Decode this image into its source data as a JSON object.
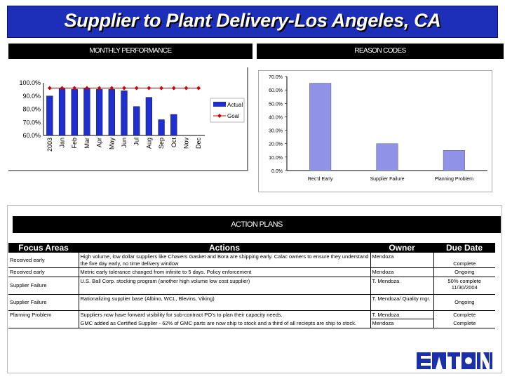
{
  "title": "Supplier to Plant Delivery-Los Angeles, CA",
  "monthly_header": "MONTHLY PERFORMANCE",
  "reason_header": "REASON CODES",
  "action_header": "ACTION PLANS",
  "logo_text": "EATON",
  "colors": {
    "title_bg": "#1d2fb8",
    "bar": "#1f2fd0",
    "goal": "#cc0000",
    "reason_bar": "#8f92e6"
  },
  "chart_data": [
    {
      "type": "bar",
      "categories": [
        "2003",
        "Jan",
        "Feb",
        "Mar",
        "Apr",
        "May",
        "Jun",
        "Jul",
        "Aug",
        "Sep",
        "Oct",
        "Nov",
        "Dec"
      ],
      "series": [
        {
          "name": "Actual",
          "values": [
            90,
            95.5,
            95,
            96,
            95,
            95,
            94,
            82,
            89,
            72,
            76,
            null,
            null
          ]
        },
        {
          "name": "Goal",
          "type": "line",
          "values": [
            96,
            96,
            96,
            96,
            96,
            96,
            96,
            96,
            96,
            96,
            96,
            96,
            96
          ]
        }
      ],
      "yticks": [
        "100.0%",
        "90.0%",
        "80.0%",
        "70.0%",
        "60.0%"
      ],
      "ylim": [
        60,
        100
      ],
      "legend": [
        "Actual",
        "Goal"
      ],
      "legend_position": "right"
    },
    {
      "type": "bar",
      "categories": [
        "Rec'd Early",
        "Supplier Failure",
        "Planning Problem"
      ],
      "values": [
        65,
        20,
        15
      ],
      "yticks": [
        "70.0%",
        "60.0%",
        "50.0%",
        "40.0%",
        "30.0%",
        "20.0%",
        "10.0%",
        "0.0%"
      ],
      "ylim": [
        0,
        70
      ]
    }
  ],
  "table": {
    "headers": [
      "Focus Areas",
      "Actions",
      "Owner",
      "Due Date"
    ],
    "rows": [
      {
        "focus": "Received early",
        "action": "High volume, low dollar suppliers like Chavers Gasket and Bora are shipping early. Calac owners to ensure they understand the five day early, no time delivery window",
        "owner": "Mendoza",
        "due": "Complete"
      },
      {
        "focus": "Received early",
        "action": "Metric early tolerance changed from infinite to 5 days. Policy enforcement",
        "owner": "Mendoza",
        "due": "Ongoing"
      },
      {
        "focus": "Supplier Failure",
        "action": "U.S. Ball Corp. stocking program (another high volume low cost supplier)",
        "owner": "T. Mendoza",
        "due": "50% complete 11/30/2004"
      },
      {
        "focus": "Supplier Failure",
        "action": "Rationalizing supplier base (Albino, WCL, Blevins, Viking)",
        "owner": "T. Mendoza/ Quality mgr.",
        "due": "Ongoing"
      },
      {
        "focus": "Planning Problem",
        "action": "Suppliers now have forward visibility for sub-contract PO's to plan their capacity needs.",
        "owner": "T. Mendoza",
        "due": "Complete"
      },
      {
        "focus": "",
        "action": "GMC added as Certified Supplier - 62% of GMC parts are now ship to stock and a third of all reciepts are ship to stock.",
        "owner": "Mendoza",
        "due": "Complete"
      }
    ]
  }
}
